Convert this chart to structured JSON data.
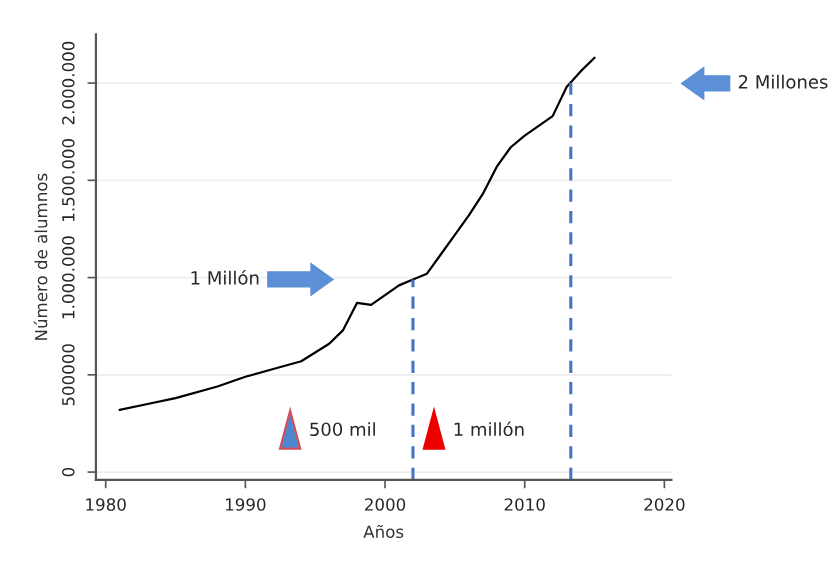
{
  "chart_data": {
    "type": "line",
    "xlabel": "Años",
    "ylabel": "Número de alumnos",
    "x": [
      1981,
      1983,
      1985,
      1988,
      1990,
      1992,
      1994,
      1996,
      1997,
      1998,
      1999,
      2000,
      2001,
      2002,
      2003,
      2004,
      2005,
      2006,
      2007,
      2008,
      2009,
      2010,
      2011,
      2012,
      2013,
      2014,
      2015
    ],
    "series": [
      {
        "color": "#000000",
        "values": [
          320000,
          350000,
          380000,
          440000,
          490000,
          530000,
          570000,
          660000,
          730000,
          870000,
          860000,
          910000,
          960000,
          990000,
          1020000,
          1120000,
          1220000,
          1320000,
          1430000,
          1570000,
          1670000,
          1730000,
          1780000,
          1830000,
          1980000,
          2060000,
          2130000
        ]
      }
    ],
    "xlim": [
      1979.3,
      2020.5
    ],
    "ylim": [
      -40000,
      2250000
    ],
    "xticks": [
      1980,
      1990,
      2000,
      2010,
      2020
    ],
    "yticks": [
      0,
      500000,
      {
        "value": 1000000,
        "label": "1.000.000"
      },
      {
        "value": 1500000,
        "label": "1.500.000"
      },
      {
        "value": 2000000,
        "label": "2.000.000"
      }
    ],
    "grid": "y",
    "ref_lines": [
      {
        "axis": "x",
        "value": 2002,
        "color": "#4472c4",
        "line_style": "dashed"
      },
      {
        "axis": "x",
        "value": 2013.3,
        "color": "#4472c4",
        "line_style": "dashed"
      }
    ],
    "annotations": [
      "1 Millón",
      "2 Millones",
      "500 mil",
      "1 millón"
    ]
  }
}
